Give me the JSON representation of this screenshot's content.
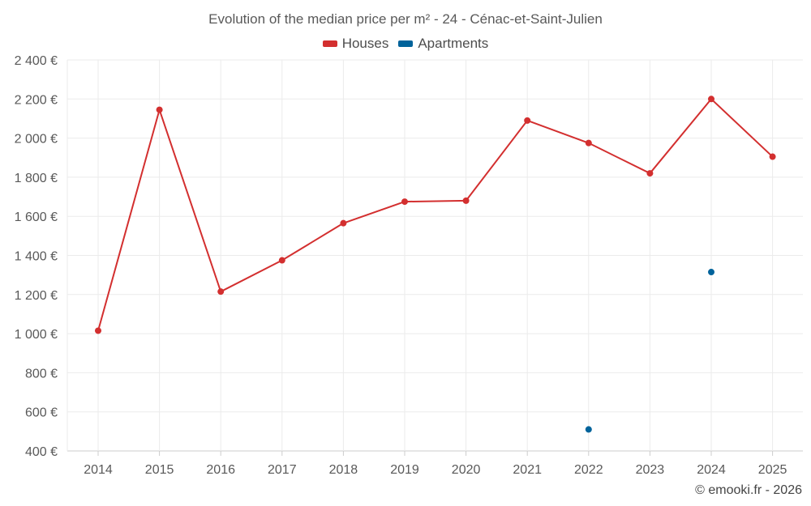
{
  "chart_data": {
    "type": "line",
    "title": "Evolution of the median price per m² - 24 - Cénac-et-Saint-Julien",
    "xlabel": "",
    "ylabel": "",
    "categories": [
      "2014",
      "2015",
      "2016",
      "2017",
      "2018",
      "2019",
      "2020",
      "2021",
      "2022",
      "2023",
      "2024",
      "2025"
    ],
    "ylim": [
      400,
      2400
    ],
    "yticks": [
      400,
      600,
      800,
      1000,
      1200,
      1400,
      1600,
      1800,
      2000,
      2200,
      2400
    ],
    "ytick_labels": [
      "400 €",
      "600 €",
      "800 €",
      "1 000 €",
      "1 200 €",
      "1 400 €",
      "1 600 €",
      "1 800 €",
      "2 000 €",
      "2 200 €",
      "2 400 €"
    ],
    "grid": true,
    "legend_position": "top-center",
    "series": [
      {
        "name": "Houses",
        "color": "#d32f2f",
        "values": [
          1015,
          2145,
          1215,
          1375,
          1565,
          1675,
          1680,
          2090,
          1975,
          1820,
          2200,
          1905
        ]
      },
      {
        "name": "Apartments",
        "color": "#00639b",
        "values": [
          null,
          null,
          null,
          null,
          null,
          null,
          null,
          null,
          510,
          null,
          1315,
          null
        ]
      }
    ]
  },
  "footer": {
    "copyright": "© emooki.fr - 2026"
  }
}
